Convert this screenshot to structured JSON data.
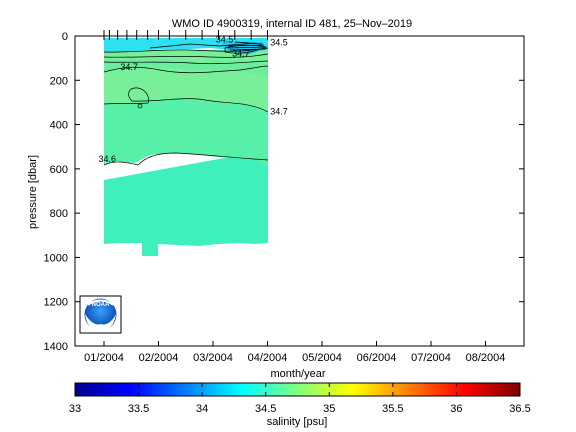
{
  "chart_data": {
    "type": "heatmap",
    "title": "WMO ID 4900319, internal ID 481, 25–Nov–2019",
    "xlabel": "month/year",
    "ylabel": "pressure [dbar]",
    "x_ticks": [
      "01/2004",
      "02/2004",
      "03/2004",
      "04/2004",
      "05/2004",
      "06/2004",
      "07/2004",
      "08/2004"
    ],
    "y_ticks": [
      0,
      200,
      400,
      600,
      800,
      1000,
      1200,
      1400
    ],
    "ylim": [
      1400,
      0
    ],
    "y_reversed": true,
    "colorbar": {
      "label": "salinity [psu]",
      "range": [
        33,
        36.5
      ],
      "ticks": [
        "33",
        "33.5",
        "34",
        "34.5",
        "35",
        "35.5",
        "36",
        "36.5"
      ],
      "colormap": "jet"
    },
    "contour_labels": [
      {
        "text": "34.5",
        "x_month": 3.05,
        "pressure": 15
      },
      {
        "text": "34.5",
        "x_month": 4.05,
        "pressure": 30
      },
      {
        "text": "34.7",
        "x_month": 3.35,
        "pressure": 80
      },
      {
        "text": "34.7",
        "x_month": 1.3,
        "pressure": 140
      },
      {
        "text": "34.7",
        "x_month": 4.05,
        "pressure": 340
      },
      {
        "text": "34.6",
        "x_month": 0.9,
        "pressure": 555
      }
    ],
    "profile_months": [
      1.0,
      1.1,
      1.25,
      1.42,
      1.6,
      1.8,
      2.0,
      2.2,
      2.5,
      2.8,
      3.1,
      3.4,
      3.7,
      4.0
    ],
    "data_extent": {
      "x_start_month": 0.9,
      "x_end_month": 4.05,
      "max_pressure": 1000
    },
    "color_layers": [
      {
        "name": "surface",
        "value": 34.45,
        "color": "#2fe0f0"
      },
      {
        "name": "upper",
        "value": 34.75,
        "color": "#78f09a"
      },
      {
        "name": "mid",
        "value": 34.7,
        "color": "#57f0a8"
      },
      {
        "name": "deep",
        "value": 34.6,
        "color": "#3ff0bd"
      }
    ],
    "grid": false,
    "legend": "none",
    "logo": "noaa-logo"
  }
}
